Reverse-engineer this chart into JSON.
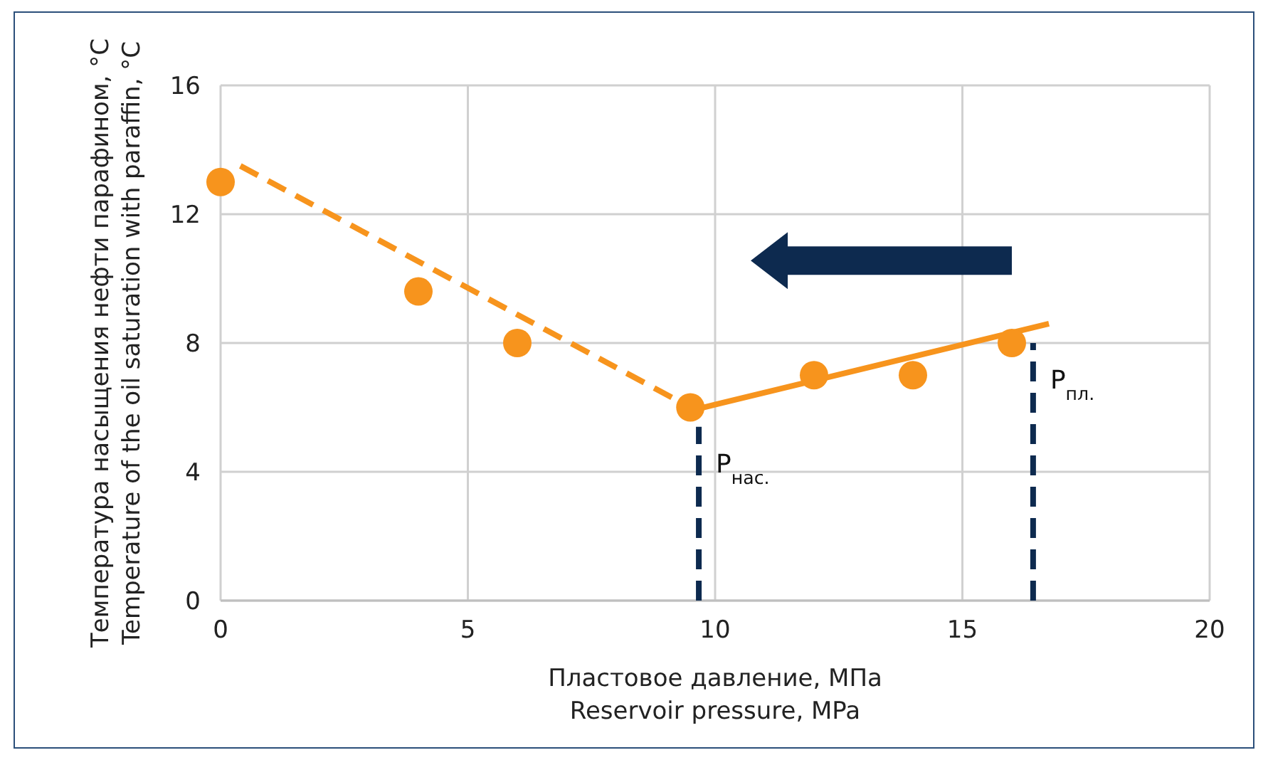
{
  "chart_data": {
    "type": "scatter",
    "xlabel": "Пластовое давление, МПа\nReservoir pressure, MPa",
    "ylabel": "Температура насыщения нефти парафином, °C\nTemperature of the oil saturation with paraffin, °C",
    "xlim": [
      0,
      20
    ],
    "ylim": [
      0,
      16
    ],
    "xticks": [
      0,
      5,
      10,
      15,
      20
    ],
    "yticks": [
      0,
      4,
      8,
      12,
      16
    ],
    "grid": true,
    "series": [
      {
        "type": "line",
        "x": [
          0.4,
          9.5
        ],
        "values": [
          13.5,
          6
        ],
        "color": "#f7941d",
        "line_style": "dashed",
        "marker": "none"
      },
      {
        "type": "line",
        "x": [
          9.5,
          16.75
        ],
        "values": [
          5.9,
          8.6
        ],
        "color": "#f7941d",
        "line_style": "solid",
        "marker": "none"
      },
      {
        "type": "line",
        "name": "P$_{нас.}$",
        "x": [
          9.67,
          9.67
        ],
        "values": [
          0,
          5.4
        ],
        "color": "#0d2a4f",
        "line_style": "dashed",
        "marker": "none"
      },
      {
        "type": "line",
        "name": "P$_{пл.}$",
        "x": [
          16.43,
          16.43
        ],
        "values": [
          0,
          8
        ],
        "color": "#0d2a4f",
        "line_style": "dashed",
        "marker": "none"
      },
      {
        "x": [
          0,
          4,
          6,
          9.5,
          12,
          14,
          16
        ],
        "values": [
          13,
          9.6,
          8,
          6,
          7,
          7,
          8
        ],
        "color": "#f7941d",
        "marker": "circle"
      }
    ]
  }
}
